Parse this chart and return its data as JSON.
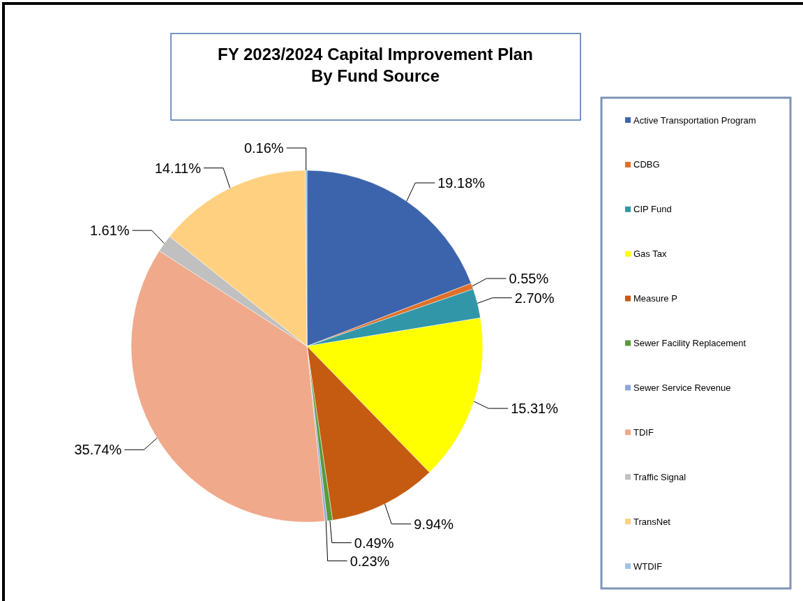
{
  "chart_data": {
    "type": "pie",
    "title": "FY 2023/2024 Capital Improvement Plan\nBy Fund Source",
    "categories": [
      "Active Transportation Program",
      "CDBG",
      "CIP Fund",
      "Gas Tax",
      "Measure P",
      "Sewer Facility Replacement",
      "Sewer Service Revenue",
      "TDIF",
      "Traffic Signal",
      "TransNet",
      "WTDIF"
    ],
    "values": [
      19.18,
      0.55,
      2.7,
      15.31,
      9.94,
      0.49,
      0.23,
      35.74,
      1.61,
      14.11,
      0.16
    ],
    "colors": [
      "#3c64ad",
      "#e07028",
      "#3196a8",
      "#ffff00",
      "#c55a11",
      "#5a9a3a",
      "#8fa9dc",
      "#f0a98a",
      "#c0c0c0",
      "#ffd080",
      "#9dc3e6"
    ],
    "value_labels": [
      "19.18%",
      "0.55%",
      "2.70%",
      "15.31%",
      "9.94%",
      "0.49%",
      "0.23%",
      "35.74%",
      "1.61%",
      "14.11%",
      "0.16%"
    ],
    "legend": "right"
  }
}
